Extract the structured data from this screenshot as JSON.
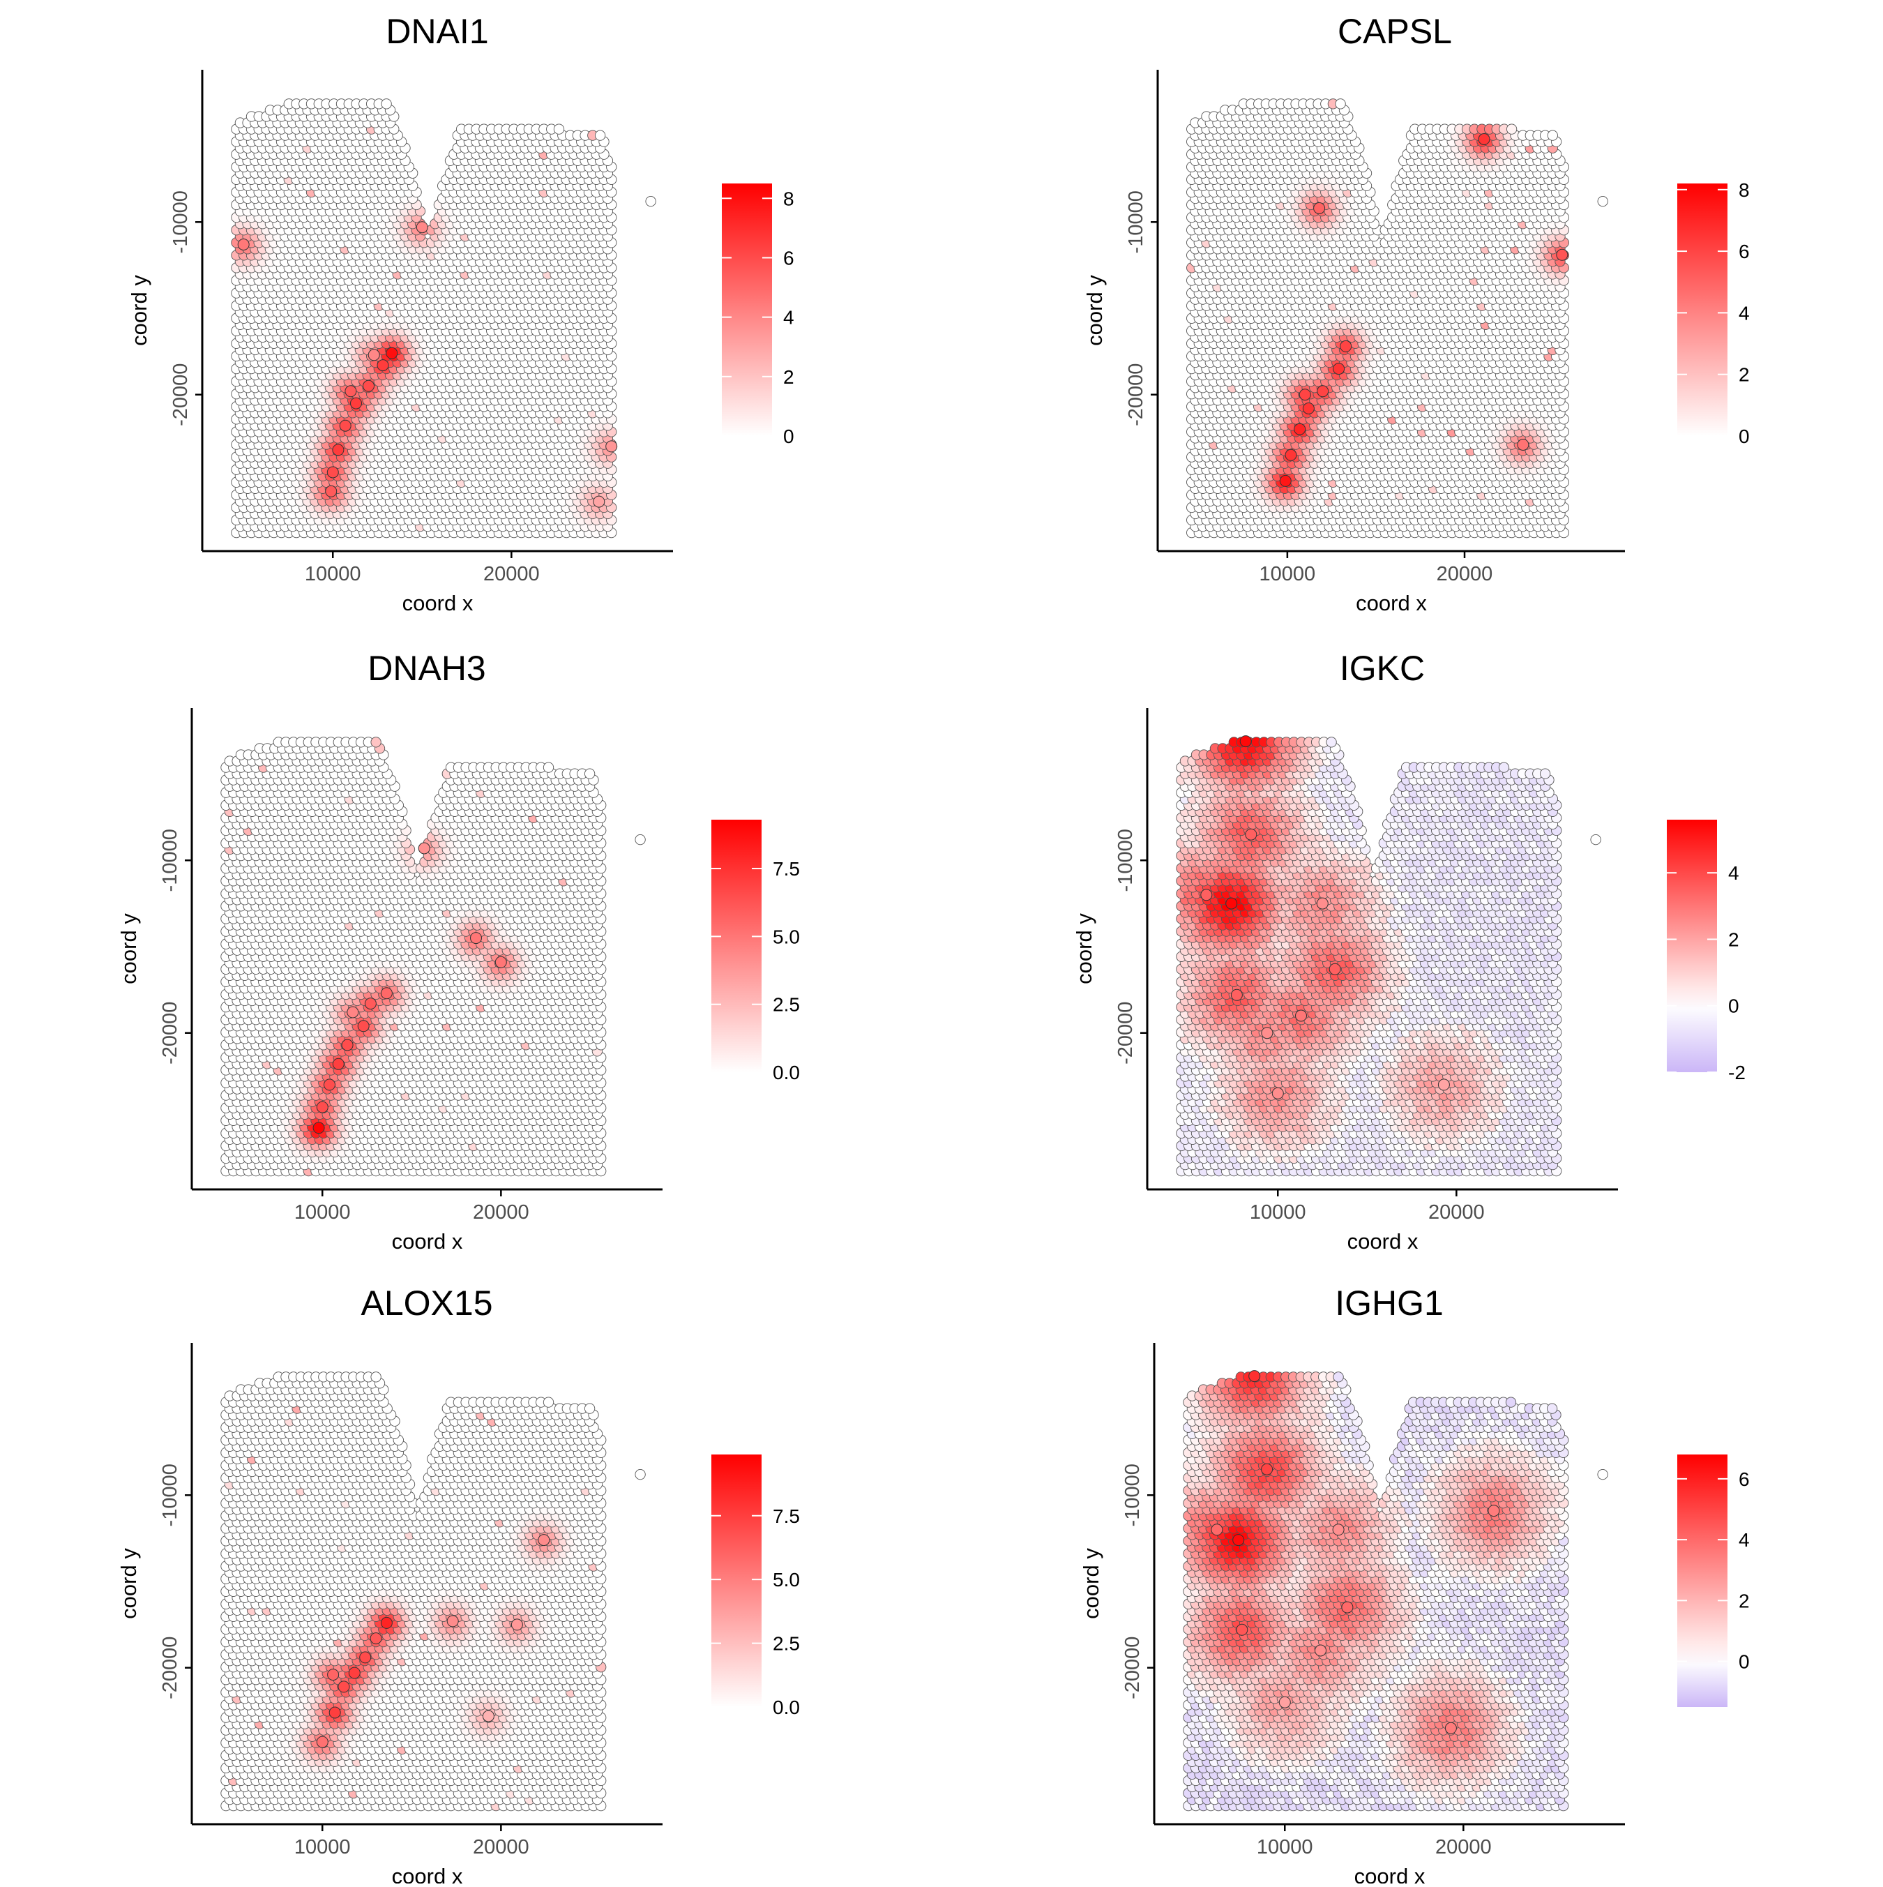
{
  "figure": {
    "panels": 6
  },
  "colors": {
    "high": "#ff0000",
    "mid": "#ffffff",
    "low": "#cbb6f7",
    "point_edge": "#555555",
    "axis": "#000000"
  },
  "chart_data": [
    {
      "type": "scatter",
      "title": "DNAI1",
      "xlabel": "coord x",
      "ylabel": "coord y",
      "xlim": [
        3000,
        28500
      ],
      "ylim": [
        -28500,
        -1500
      ],
      "x_ticks": [
        10000,
        20000
      ],
      "y_ticks": [
        -10000,
        -20000
      ],
      "x_tick_labels": [
        "10000",
        "20000"
      ],
      "y_tick_labels": [
        "-10000",
        "-20000"
      ],
      "legend": {
        "placement": "right",
        "ticks": [
          0,
          2,
          4,
          6,
          8
        ],
        "tick_labels": [
          "0",
          "2",
          "4",
          "6",
          "8"
        ],
        "min": 0,
        "max": 8.5
      },
      "hotspots": [
        {
          "x": 13300,
          "y": -17600,
          "value": 8.0
        },
        {
          "x": 12800,
          "y": -18300,
          "value": 6.5
        },
        {
          "x": 12000,
          "y": -19500,
          "value": 6.0
        },
        {
          "x": 11300,
          "y": -20500,
          "value": 6.5
        },
        {
          "x": 10700,
          "y": -21800,
          "value": 6.0
        },
        {
          "x": 10300,
          "y": -23200,
          "value": 6.5
        },
        {
          "x": 10000,
          "y": -24500,
          "value": 6.0
        },
        {
          "x": 9900,
          "y": -25600,
          "value": 5.5
        },
        {
          "x": 12300,
          "y": -17700,
          "value": 4.0
        },
        {
          "x": 11000,
          "y": -19800,
          "value": 5.5
        },
        {
          "x": 5000,
          "y": -11300,
          "value": 4.5
        },
        {
          "x": 15000,
          "y": -10300,
          "value": 4.0
        },
        {
          "x": 24900,
          "y": -26200,
          "value": 3.0
        },
        {
          "x": 25600,
          "y": -23000,
          "value": 3.5
        }
      ],
      "sparse_count": 40,
      "sparse_max": 2.0
    },
    {
      "type": "scatter",
      "title": "CAPSL",
      "xlabel": "coord x",
      "ylabel": "coord y",
      "xlim": [
        3000,
        28500
      ],
      "ylim": [
        -28500,
        -1500
      ],
      "x_ticks": [
        10000,
        20000
      ],
      "y_ticks": [
        -10000,
        -20000
      ],
      "x_tick_labels": [
        "10000",
        "20000"
      ],
      "y_tick_labels": [
        "-10000",
        "-20000"
      ],
      "legend": {
        "placement": "right",
        "ticks": [
          0,
          2,
          4,
          6,
          8
        ],
        "tick_labels": [
          "0",
          "2",
          "4",
          "6",
          "8"
        ],
        "min": 0,
        "max": 8.2
      },
      "hotspots": [
        {
          "x": 13300,
          "y": -17200,
          "value": 6.0
        },
        {
          "x": 12900,
          "y": -18500,
          "value": 6.5
        },
        {
          "x": 12000,
          "y": -19800,
          "value": 6.0
        },
        {
          "x": 11200,
          "y": -20800,
          "value": 6.5
        },
        {
          "x": 10700,
          "y": -22000,
          "value": 7.0
        },
        {
          "x": 10200,
          "y": -23500,
          "value": 6.5
        },
        {
          "x": 9900,
          "y": -25000,
          "value": 7.5
        },
        {
          "x": 11000,
          "y": -20000,
          "value": 6.0
        },
        {
          "x": 21100,
          "y": -5200,
          "value": 6.5
        },
        {
          "x": 25500,
          "y": -11900,
          "value": 5.5
        },
        {
          "x": 11800,
          "y": -9200,
          "value": 5.0
        },
        {
          "x": 23300,
          "y": -22900,
          "value": 4.5
        }
      ],
      "sparse_count": 40,
      "sparse_max": 2.5
    },
    {
      "type": "scatter",
      "title": "DNAH3",
      "xlabel": "coord x",
      "ylabel": "coord y",
      "xlim": [
        3000,
        28500
      ],
      "ylim": [
        -28500,
        -1500
      ],
      "x_ticks": [
        10000,
        20000
      ],
      "y_ticks": [
        -10000,
        -20000
      ],
      "x_tick_labels": [
        "10000",
        "20000"
      ],
      "y_tick_labels": [
        "-10000",
        "-20000"
      ],
      "legend": {
        "placement": "right",
        "ticks": [
          0,
          2.5,
          5,
          7.5
        ],
        "tick_labels": [
          "0.0",
          "2.5",
          "5.0",
          "7.5"
        ],
        "min": 0,
        "max": 9.3
      },
      "hotspots": [
        {
          "x": 9800,
          "y": -25500,
          "value": 9.2
        },
        {
          "x": 10000,
          "y": -24300,
          "value": 6.5
        },
        {
          "x": 10400,
          "y": -23000,
          "value": 6.5
        },
        {
          "x": 10900,
          "y": -21800,
          "value": 7.0
        },
        {
          "x": 11400,
          "y": -20700,
          "value": 6.5
        },
        {
          "x": 12300,
          "y": -19600,
          "value": 6.5
        },
        {
          "x": 12700,
          "y": -18300,
          "value": 6.0
        },
        {
          "x": 13600,
          "y": -17700,
          "value": 5.5
        },
        {
          "x": 11700,
          "y": -18800,
          "value": 4.5
        },
        {
          "x": 18600,
          "y": -14500,
          "value": 5.0
        },
        {
          "x": 20000,
          "y": -15900,
          "value": 5.0
        },
        {
          "x": 15700,
          "y": -9300,
          "value": 4.0
        }
      ],
      "sparse_count": 40,
      "sparse_max": 2.2
    },
    {
      "type": "scatter",
      "title": "IGKC",
      "xlabel": "coord x",
      "ylabel": "coord y",
      "xlim": [
        3000,
        28500
      ],
      "ylim": [
        -28500,
        -1500
      ],
      "x_ticks": [
        10000,
        20000
      ],
      "y_ticks": [
        -10000,
        -20000
      ],
      "x_tick_labels": [
        "10000",
        "20000"
      ],
      "y_tick_labels": [
        "-10000",
        "-20000"
      ],
      "legend": {
        "placement": "right",
        "ticks": [
          -2,
          0,
          2,
          4
        ],
        "tick_labels": [
          "-2",
          "0",
          "2",
          "4"
        ],
        "min": -2.0,
        "max": 5.6
      },
      "hotspots": [
        {
          "x": 8200,
          "y": -3100,
          "value": 5.4
        },
        {
          "x": 7400,
          "y": -12500,
          "value": 5.5
        },
        {
          "x": 6000,
          "y": -12000,
          "value": 3.5
        },
        {
          "x": 8500,
          "y": -8500,
          "value": 3.5
        },
        {
          "x": 12500,
          "y": -12500,
          "value": 2.5
        },
        {
          "x": 13200,
          "y": -16300,
          "value": 3.5
        },
        {
          "x": 11300,
          "y": -19000,
          "value": 3.0
        },
        {
          "x": 9400,
          "y": -20000,
          "value": 2.5
        },
        {
          "x": 10000,
          "y": -23500,
          "value": 2.5
        },
        {
          "x": 7700,
          "y": -17800,
          "value": 3.5
        },
        {
          "x": 19300,
          "y": -23000,
          "value": 2.0
        }
      ],
      "sparse_count": 0,
      "sparse_max": 0
    },
    {
      "type": "scatter",
      "title": "ALOX15",
      "xlabel": "coord x",
      "ylabel": "coord y",
      "xlim": [
        3000,
        28500
      ],
      "ylim": [
        -28500,
        -1500
      ],
      "x_ticks": [
        10000,
        20000
      ],
      "y_ticks": [
        -10000,
        -20000
      ],
      "x_tick_labels": [
        "10000",
        "20000"
      ],
      "y_tick_labels": [
        "-10000",
        "-20000"
      ],
      "legend": {
        "placement": "right",
        "ticks": [
          0,
          2.5,
          5,
          7.5
        ],
        "tick_labels": [
          "0.0",
          "2.5",
          "5.0",
          "7.5"
        ],
        "min": 0,
        "max": 9.9
      },
      "hotspots": [
        {
          "x": 13600,
          "y": -17400,
          "value": 8.5
        },
        {
          "x": 13000,
          "y": -18300,
          "value": 6.5
        },
        {
          "x": 12400,
          "y": -19400,
          "value": 7.0
        },
        {
          "x": 11800,
          "y": -20300,
          "value": 7.5
        },
        {
          "x": 11200,
          "y": -21100,
          "value": 7.0
        },
        {
          "x": 10700,
          "y": -22600,
          "value": 7.5
        },
        {
          "x": 10600,
          "y": -20400,
          "value": 6.0
        },
        {
          "x": 10000,
          "y": -24300,
          "value": 5.5
        },
        {
          "x": 17300,
          "y": -17300,
          "value": 4.5
        },
        {
          "x": 20900,
          "y": -17500,
          "value": 4.0
        },
        {
          "x": 22400,
          "y": -12600,
          "value": 4.5
        },
        {
          "x": 19300,
          "y": -22800,
          "value": 3.0
        }
      ],
      "sparse_count": 40,
      "sparse_max": 2.5
    },
    {
      "type": "scatter",
      "title": "IGHG1",
      "xlabel": "coord x",
      "ylabel": "coord y",
      "xlim": [
        3000,
        28500
      ],
      "ylim": [
        -28500,
        -1500
      ],
      "x_ticks": [
        10000,
        20000
      ],
      "y_ticks": [
        -10000,
        -20000
      ],
      "x_tick_labels": [
        "10000",
        "20000"
      ],
      "y_tick_labels": [
        "-10000",
        "-20000"
      ],
      "legend": {
        "placement": "right",
        "ticks": [
          0,
          2,
          4,
          6
        ],
        "tick_labels": [
          "0",
          "2",
          "4",
          "6"
        ],
        "min": -1.5,
        "max": 6.8
      },
      "hotspots": [
        {
          "x": 8300,
          "y": -3100,
          "value": 5.5
        },
        {
          "x": 7400,
          "y": -12600,
          "value": 6.5
        },
        {
          "x": 6200,
          "y": -12000,
          "value": 4.0
        },
        {
          "x": 9000,
          "y": -8500,
          "value": 5.0
        },
        {
          "x": 7600,
          "y": -17800,
          "value": 4.5
        },
        {
          "x": 13000,
          "y": -12000,
          "value": 3.0
        },
        {
          "x": 13500,
          "y": -16500,
          "value": 4.0
        },
        {
          "x": 12000,
          "y": -19000,
          "value": 3.0
        },
        {
          "x": 10000,
          "y": -22000,
          "value": 2.5
        },
        {
          "x": 21700,
          "y": -10900,
          "value": 3.5
        },
        {
          "x": 19300,
          "y": -23500,
          "value": 3.5
        }
      ],
      "sparse_count": 0,
      "sparse_max": 0
    }
  ]
}
